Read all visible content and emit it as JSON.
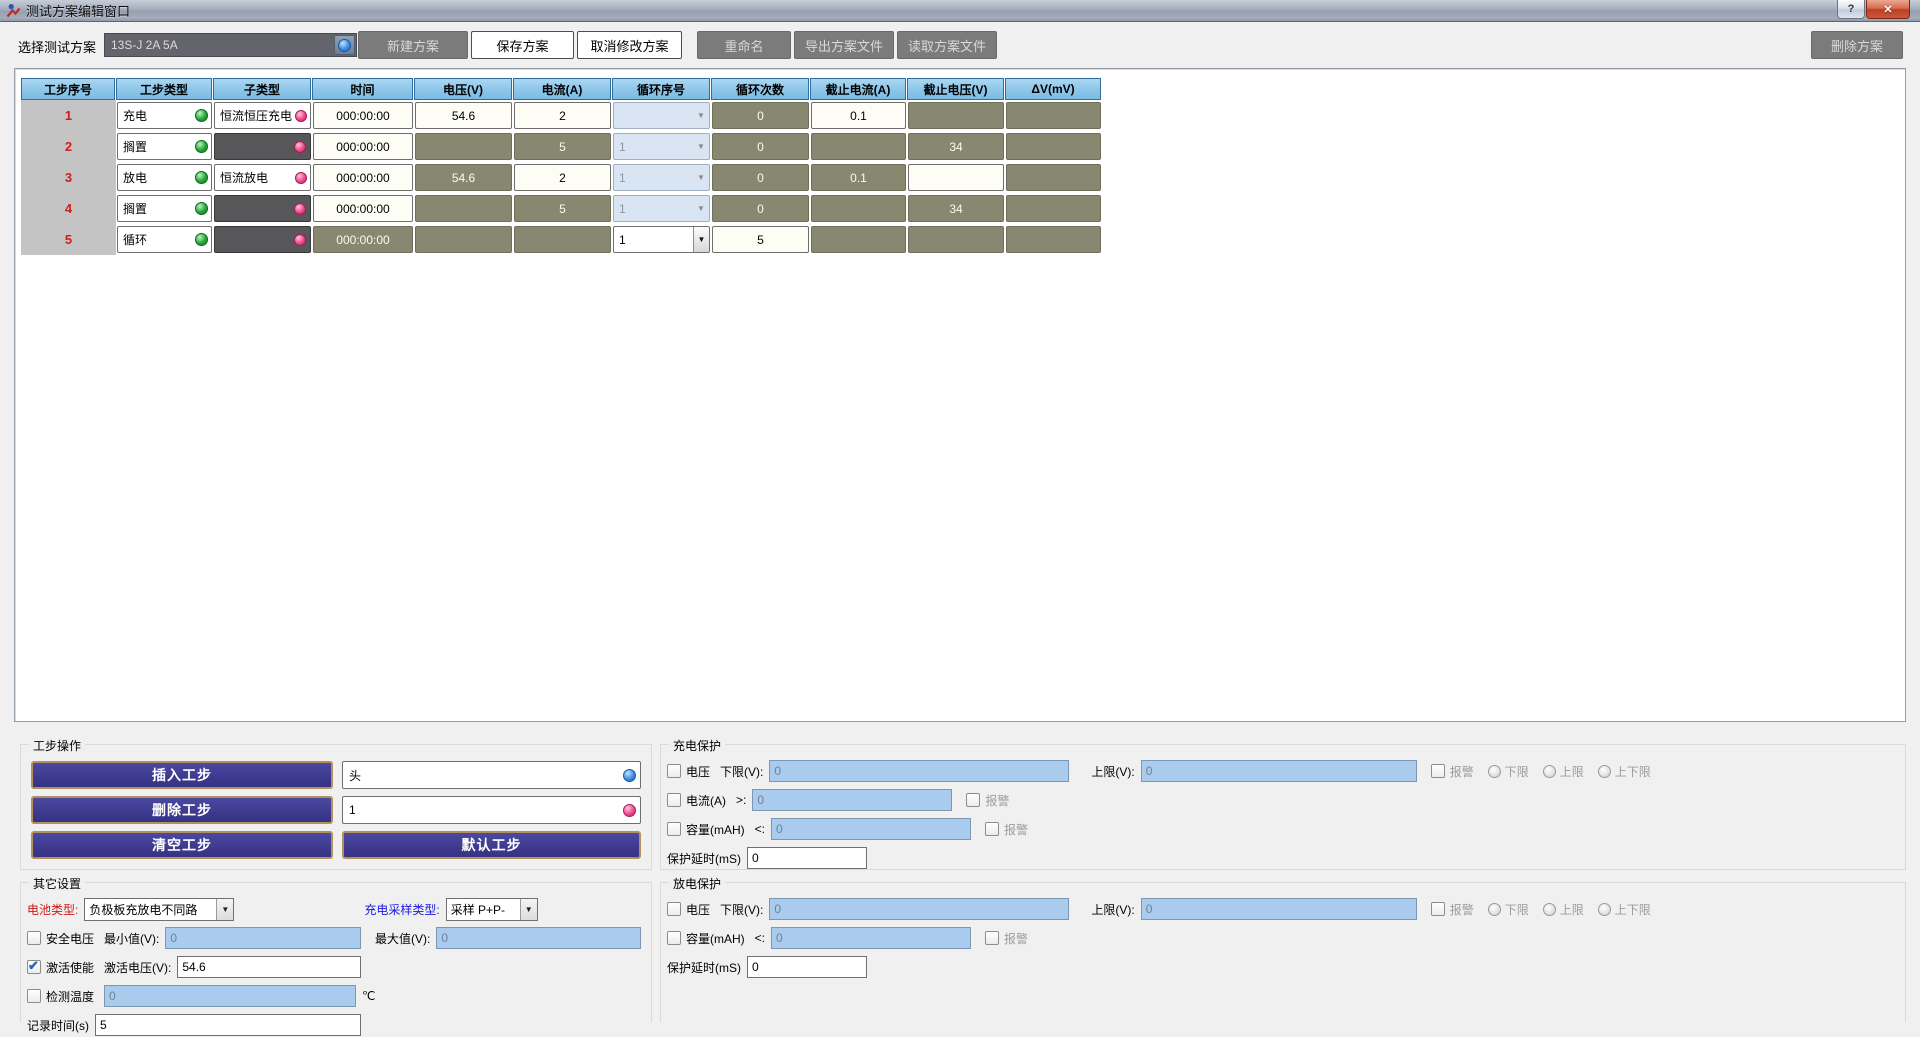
{
  "window": {
    "title": "测试方案编辑窗口",
    "help_label": "?",
    "close_label": "✕"
  },
  "toolbar": {
    "select_label": "选择测试方案",
    "plan_value": "13S-J 2A 5A",
    "buttons": [
      {
        "label": "新建方案",
        "enabled": false
      },
      {
        "label": "保存方案",
        "enabled": true
      },
      {
        "label": "取消修改方案",
        "enabled": true
      },
      {
        "label": "重命名",
        "enabled": false
      },
      {
        "label": "导出方案文件",
        "enabled": false
      },
      {
        "label": "读取方案文件",
        "enabled": false
      }
    ],
    "delete_label": "删除方案"
  },
  "table": {
    "headers": [
      "工步序号",
      "工步类型",
      "子类型",
      "时间",
      "电压(V)",
      "电流(A)",
      "循环序号",
      "循环次数",
      "截止电流(A)",
      "截止电压(V)",
      "ΔV(mV)"
    ],
    "rows": [
      {
        "num": "1",
        "cells": [
          {
            "t": "type",
            "v": "充电"
          },
          {
            "t": "subw",
            "v": "恒流恒压充电"
          },
          {
            "t": "w",
            "v": "000:00:00"
          },
          {
            "t": "w",
            "v": "54.6"
          },
          {
            "t": "w",
            "v": "2"
          },
          {
            "t": "ddd",
            "v": ""
          },
          {
            "t": "o",
            "v": "0"
          },
          {
            "t": "w",
            "v": "0.1"
          },
          {
            "t": "o",
            "v": ""
          },
          {
            "t": "o",
            "v": ""
          }
        ]
      },
      {
        "num": "2",
        "cells": [
          {
            "t": "type",
            "v": "搁置"
          },
          {
            "t": "subd",
            "v": ""
          },
          {
            "t": "w",
            "v": "000:00:00"
          },
          {
            "t": "o",
            "v": ""
          },
          {
            "t": "o",
            "v": "5"
          },
          {
            "t": "ddd",
            "v": "1"
          },
          {
            "t": "o",
            "v": "0"
          },
          {
            "t": "o",
            "v": ""
          },
          {
            "t": "o",
            "v": "34"
          },
          {
            "t": "o",
            "v": ""
          }
        ]
      },
      {
        "num": "3",
        "cells": [
          {
            "t": "type",
            "v": "放电"
          },
          {
            "t": "subw",
            "v": "恒流放电"
          },
          {
            "t": "w",
            "v": "000:00:00"
          },
          {
            "t": "o",
            "v": "54.6"
          },
          {
            "t": "w",
            "v": "2"
          },
          {
            "t": "ddd",
            "v": "1"
          },
          {
            "t": "o",
            "v": "0"
          },
          {
            "t": "o",
            "v": "0.1"
          },
          {
            "t": "w",
            "v": ""
          },
          {
            "t": "o",
            "v": ""
          }
        ]
      },
      {
        "num": "4",
        "cells": [
          {
            "t": "type",
            "v": "搁置"
          },
          {
            "t": "subd",
            "v": ""
          },
          {
            "t": "w",
            "v": "000:00:00"
          },
          {
            "t": "o",
            "v": ""
          },
          {
            "t": "o",
            "v": "5"
          },
          {
            "t": "ddd",
            "v": "1"
          },
          {
            "t": "o",
            "v": "0"
          },
          {
            "t": "o",
            "v": ""
          },
          {
            "t": "o",
            "v": "34"
          },
          {
            "t": "o",
            "v": ""
          }
        ]
      },
      {
        "num": "5",
        "cells": [
          {
            "t": "type",
            "v": "循环"
          },
          {
            "t": "subd",
            "v": ""
          },
          {
            "t": "o",
            "v": "000:00:00"
          },
          {
            "t": "o",
            "v": ""
          },
          {
            "t": "o",
            "v": ""
          },
          {
            "t": "dde",
            "v": "1"
          },
          {
            "t": "w",
            "v": "5"
          },
          {
            "t": "o",
            "v": ""
          },
          {
            "t": "o",
            "v": ""
          },
          {
            "t": "o",
            "v": ""
          }
        ]
      }
    ]
  },
  "step_ops": {
    "title": "工步操作",
    "insert_label": "插入工步",
    "insert_value": "头",
    "delete_label": "删除工步",
    "delete_value": "1",
    "clear_label": "清空工步",
    "default_label": "默认工步"
  },
  "other_settings": {
    "title": "其它设置",
    "battery_type_label": "电池类型:",
    "battery_type_value": "负极板充放电不同路",
    "sample_type_label": "充电采样类型:",
    "sample_type_value": "采样 P+P-",
    "safe_voltage_label": "安全电压",
    "min_label": "最小值(V):",
    "min_value": "0",
    "max_label": "最大值(V):",
    "max_value": "0",
    "activate_label": "激活使能",
    "activate_volt_label": "激活电压(V):",
    "activate_volt_value": "54.6",
    "temp_label": "检测温度",
    "temp_value": "0",
    "temp_unit": "℃",
    "record_label": "记录时间(s)",
    "record_value": "5"
  },
  "charge_protect": {
    "title": "充电保护",
    "voltage_label": "电压",
    "low_label": "下限(V):",
    "low_value": "0",
    "high_label": "上限(V):",
    "high_value": "0",
    "alarm_label": "报警",
    "radios": [
      "下限",
      "上限",
      "上下限"
    ],
    "current_label": "电流(A)",
    "current_op": ">:",
    "current_value": "0",
    "current_alarm_label": "报警",
    "capacity_label": "容量(mAH)",
    "capacity_op": "<:",
    "capacity_value": "0",
    "capacity_alarm_label": "报警",
    "delay_label": "保护延时(mS)",
    "delay_value": "0"
  },
  "discharge_protect": {
    "title": "放电保护",
    "voltage_label": "电压",
    "low_label": "下限(V):",
    "low_value": "0",
    "high_label": "上限(V):",
    "high_value": "0",
    "alarm_label": "报警",
    "radios": [
      "下限",
      "上限",
      "上下限"
    ],
    "capacity_label": "容量(mAH)",
    "capacity_op": "<:",
    "capacity_value": "0",
    "capacity_alarm_label": "报警",
    "delay_label": "保护延时(mS)",
    "delay_value": "0"
  },
  "colors": {
    "header_blue": "#8cc6e9",
    "disabled_cell_olive": "#87886f",
    "button_purple": "#3e3b90",
    "disabled_input_blue": "#a9ccee",
    "row_number_red": "#d21c1c"
  }
}
